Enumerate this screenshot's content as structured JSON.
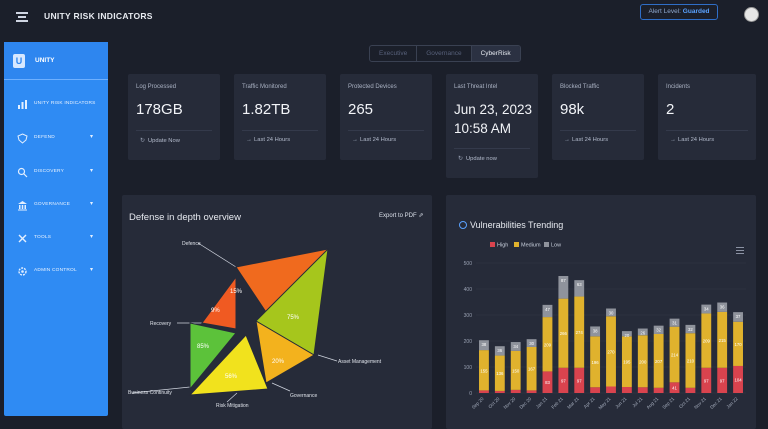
{
  "header": {
    "title": "UNITY RISK INDICATORS",
    "alert_label": "Alert Level:",
    "alert_value": "Guarded",
    "menu_icon": "hamburger-icon",
    "avatar_icon": "user-avatar"
  },
  "sidebar": {
    "title": "UNITY",
    "logo_letter": "U",
    "items": [
      {
        "label": "UNITY RISK INDICATORS",
        "icon": "bar-chart-icon"
      },
      {
        "label": "DEFEND",
        "icon": "shield-icon"
      },
      {
        "label": "DISCOVERY",
        "icon": "search-icon"
      },
      {
        "label": "GOVERNANCE",
        "icon": "governance-icon"
      },
      {
        "label": "TOOLS",
        "icon": "tools-icon"
      },
      {
        "label": "ADMIN CONTROL",
        "icon": "gear-icon"
      }
    ]
  },
  "tabs": [
    {
      "label": "Executive",
      "active": false
    },
    {
      "label": "Governance",
      "active": false
    },
    {
      "label": "CyberRisk",
      "active": true
    }
  ],
  "cards": [
    {
      "title": "Log Processed",
      "value": "178GB",
      "footer": "Update Now",
      "footer_icon": "refresh-icon"
    },
    {
      "title": "Traffic Monitored",
      "value": "1.82TB",
      "footer": "Last 24 Hours",
      "footer_icon": "arrow-icon"
    },
    {
      "title": "Protected Devices",
      "value": "265",
      "footer": "Last 24 Hours",
      "footer_icon": "arrow-icon"
    },
    {
      "title": "Last Threat Intel",
      "value_line1": "Jun 23, 2023",
      "value_line2": "10:58 AM",
      "footer": "Update now",
      "footer_icon": "refresh-icon"
    },
    {
      "title": "Blocked Traffic",
      "value": "98k",
      "footer": "Last 24 Hours",
      "footer_icon": "arrow-icon"
    },
    {
      "title": "Incidents",
      "value": "2",
      "footer": "Last 24 Hours",
      "footer_icon": "arrow-icon"
    }
  ],
  "defense_panel": {
    "title": "Defense in depth overview",
    "export_label": "Export to PDF",
    "segments": [
      {
        "name": "Defence",
        "value": "15%",
        "color": "#f06a1e"
      },
      {
        "name": "Asset Management",
        "value": "75%",
        "color": "#a6c61c"
      },
      {
        "name": "Governance",
        "value": "20%",
        "color": "#f3b21d"
      },
      {
        "name": "Risk Mitigation",
        "value": "56%",
        "color": "#f1e21d"
      },
      {
        "name": "Business Continuity",
        "value": "85%",
        "color": "#5cc23a"
      },
      {
        "name": "Recovery",
        "value": "9%",
        "color": "#f05a22"
      }
    ]
  },
  "chart_data": {
    "type": "bar",
    "stacked": true,
    "title": "Vulnerabilities Trending",
    "ylim": [
      0,
      500
    ],
    "yticks": [
      "0",
      "100",
      "200",
      "300",
      "400",
      "500"
    ],
    "categories": [
      "Sep 20",
      "Oct 20",
      "Nov 20",
      "Dec 20",
      "Jan 21",
      "Feb 21",
      "Mar 21",
      "Apr 21",
      "May 21",
      "Jun 21",
      "Jul 21",
      "Aug 21",
      "Sep 21",
      "Oct 21",
      "Nov 21",
      "Dec 21",
      "Jan 22"
    ],
    "series": [
      {
        "name": "High",
        "color": "#d9434e",
        "values": [
          10,
          8,
          12,
          10,
          83,
          97,
          97,
          22,
          25,
          23,
          22,
          20,
          41,
          20,
          97,
          97,
          104
        ]
      },
      {
        "name": "Medium",
        "color": "#e0b22d",
        "values": [
          155,
          136,
          150,
          167,
          209,
          266,
          274,
          196,
          270,
          195,
          200,
          207,
          214,
          210,
          209,
          215,
          170
        ]
      },
      {
        "name": "Low",
        "color": "#8f939c",
        "values": [
          38,
          36,
          34,
          30,
          47,
          87,
          63,
          38,
          30,
          20,
          26,
          32,
          31,
          32,
          34,
          36,
          37
        ]
      }
    ],
    "labels": {
      "High": [
        "",
        "",
        "",
        "",
        "83",
        "97",
        "97",
        "",
        "",
        "",
        "",
        "",
        "41",
        "",
        "97",
        "97",
        "104"
      ],
      "Medium": [
        "155",
        "136",
        "150",
        "167",
        "209",
        "266",
        "274",
        "196",
        "270",
        "195",
        "200",
        "207",
        "214",
        "210",
        "209",
        "215",
        "170"
      ],
      "Low": [
        "38",
        "36",
        "34",
        "30",
        "47",
        "87",
        "63",
        "38",
        "30",
        "20",
        "26",
        "32",
        "31",
        "32",
        "34",
        "36",
        "37"
      ]
    }
  }
}
